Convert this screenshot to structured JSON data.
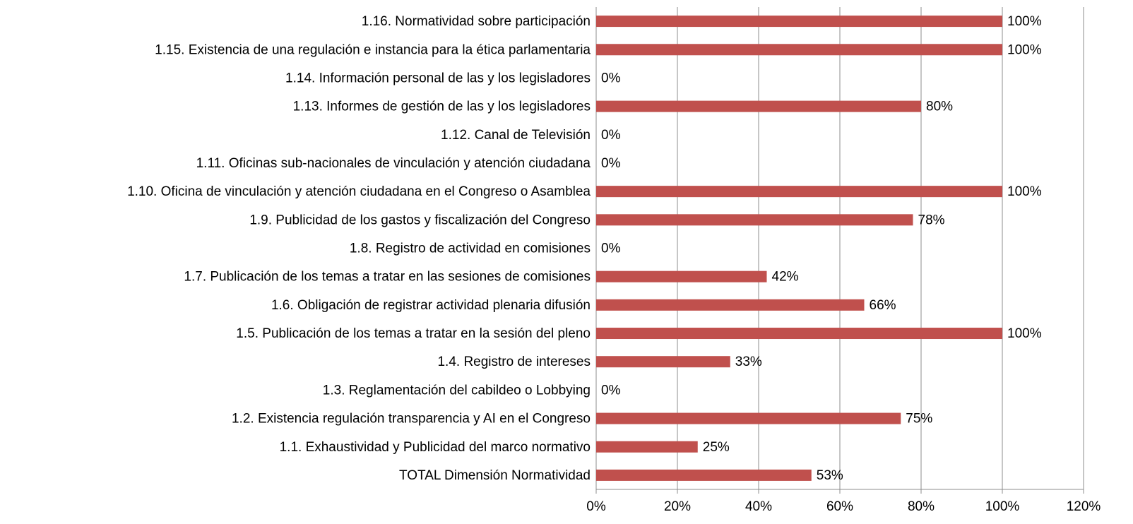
{
  "chart_data": {
    "type": "bar",
    "orientation": "horizontal",
    "categories": [
      "1.16. Normatividad sobre participación",
      "1.15. Existencia de una regulación e instancia para la ética parlamentaria",
      "1.14. Información personal de las y los legisladores",
      "1.13. Informes de gestión de las y los legisladores",
      "1.12. Canal de Televisión",
      "1.11. Oficinas sub-nacionales de vinculación y atención ciudadana",
      "1.10. Oficina de vinculación y atención ciudadana en el Congreso o Asamblea",
      "1.9. Publicidad de los gastos y fiscalización del Congreso",
      "1.8. Registro de actividad en comisiones",
      "1.7. Publicación de los temas a tratar en las sesiones de comisiones",
      "1.6. Obligación de registrar actividad plenaria difusión",
      "1.5. Publicación de los temas a tratar en la sesión del pleno",
      "1.4. Registro de intereses",
      "1.3. Reglamentación del cabildeo o Lobbying",
      "1.2. Existencia regulación transparencia y AI en el Congreso",
      "1.1. Exhaustividad y Publicidad del marco normativo",
      "TOTAL Dimensión Normatividad"
    ],
    "values": [
      100,
      100,
      0,
      80,
      0,
      0,
      100,
      78,
      0,
      42,
      66,
      100,
      33,
      0,
      75,
      25,
      53
    ],
    "value_labels": [
      "100%",
      "100%",
      "0%",
      "80%",
      "0%",
      "0%",
      "100%",
      "78%",
      "0%",
      "42%",
      "66%",
      "100%",
      "33%",
      "0%",
      "75%",
      "25%",
      "53%"
    ],
    "color": "#c0504d",
    "xlim": [
      0,
      120
    ],
    "xticks": [
      {
        "value": 0,
        "label": "0%"
      },
      {
        "value": 20,
        "label": "20%"
      },
      {
        "value": 40,
        "label": "40%"
      },
      {
        "value": 60,
        "label": "60%"
      },
      {
        "value": 80,
        "label": "80%"
      },
      {
        "value": 100,
        "label": "100%"
      },
      {
        "value": 120,
        "label": "120%"
      }
    ],
    "grid": true
  }
}
